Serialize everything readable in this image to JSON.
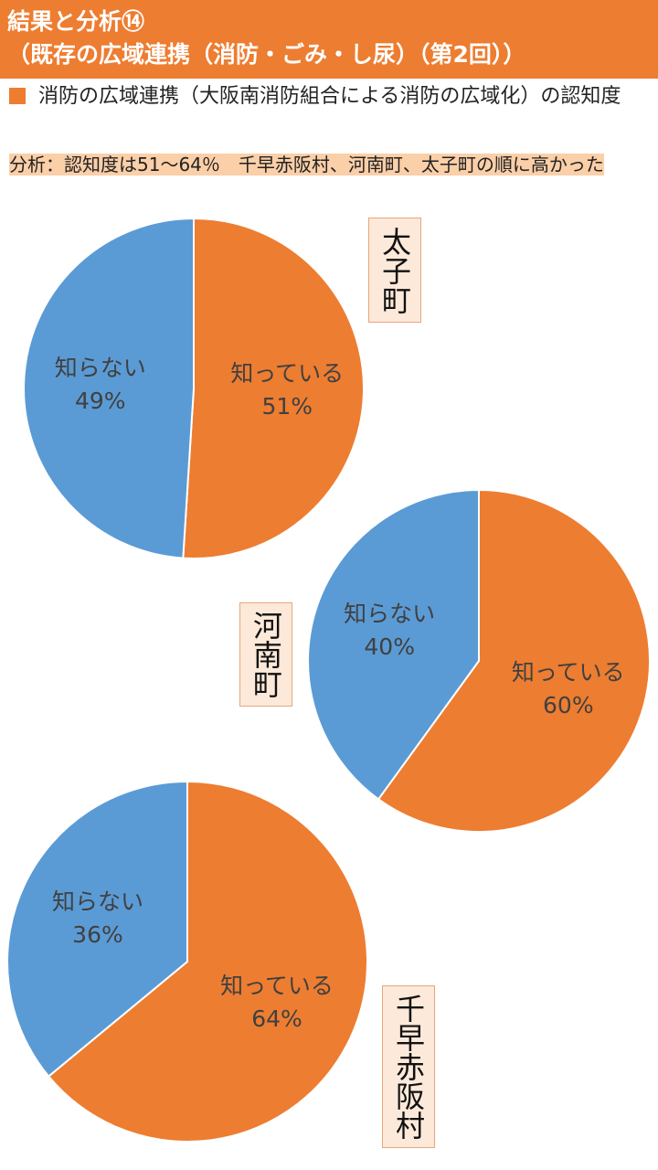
{
  "header": {
    "title": "結果と分析⑭",
    "subtitle": "（既存の広域連携（消防・ごみ・し尿）（第2回））"
  },
  "question": "消防の広域連携（大阪南消防組合による消防の広域化）の認知度",
  "analysis": "分析：認知度は51～64％　千早赤阪村、河南町、太子町の順に高かった",
  "chart_data": [
    {
      "type": "pie",
      "title": "太子町",
      "categories": [
        "知っている",
        "知らない"
      ],
      "values": [
        51,
        49
      ],
      "value_labels": [
        "51%",
        "49%"
      ],
      "colors": [
        "#ED7D31",
        "#5B9BD5"
      ]
    },
    {
      "type": "pie",
      "title": "河南町",
      "categories": [
        "知っている",
        "知らない"
      ],
      "values": [
        60,
        40
      ],
      "value_labels": [
        "60%",
        "40%"
      ],
      "colors": [
        "#ED7D31",
        "#5B9BD5"
      ]
    },
    {
      "type": "pie",
      "title": "千早赤阪村",
      "categories": [
        "知っている",
        "知らない"
      ],
      "values": [
        64,
        36
      ],
      "value_labels": [
        "64%",
        "36%"
      ],
      "colors": [
        "#ED7D31",
        "#5B9BD5"
      ]
    }
  ]
}
